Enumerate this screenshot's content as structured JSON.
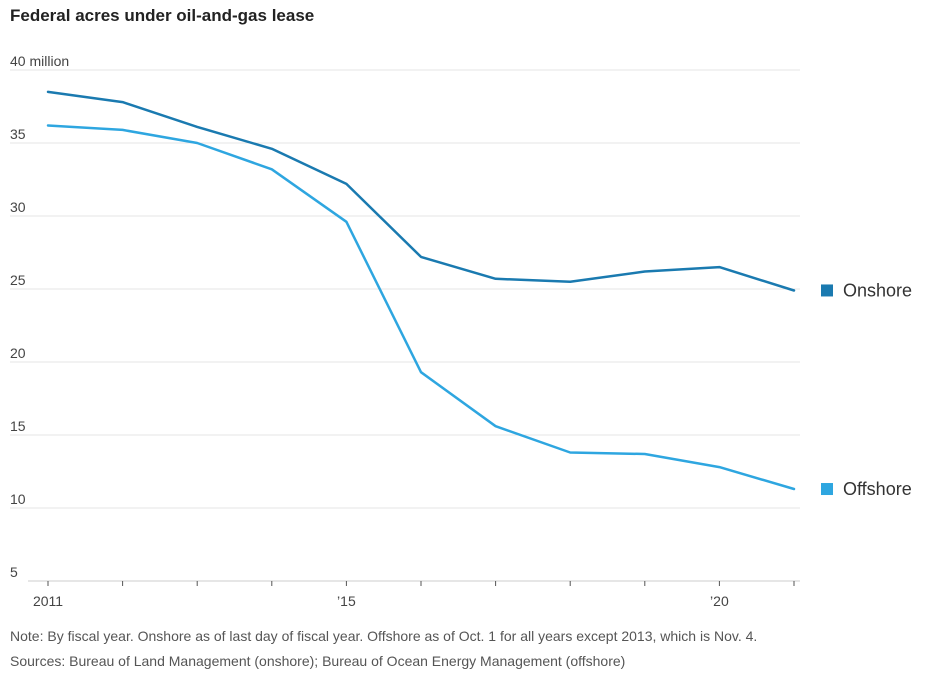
{
  "chart_data": {
    "type": "line",
    "title": "Federal acres under oil-and-gas lease",
    "x": [
      2011,
      2012,
      2013,
      2014,
      2015,
      2016,
      2017,
      2018,
      2019,
      2020,
      2021
    ],
    "x_tick_labels": [
      {
        "x": 2011,
        "label": "2011"
      },
      {
        "x": 2015,
        "label": "’15"
      },
      {
        "x": 2020,
        "label": "’20"
      }
    ],
    "y_ticks": [
      {
        "value": 40,
        "label": "40 million"
      },
      {
        "value": 35,
        "label": "35"
      },
      {
        "value": 30,
        "label": "30"
      },
      {
        "value": 25,
        "label": "25"
      },
      {
        "value": 20,
        "label": "20"
      },
      {
        "value": 15,
        "label": "15"
      },
      {
        "value": 10,
        "label": "10"
      },
      {
        "value": 5,
        "label": "5"
      }
    ],
    "ylim": [
      5,
      40
    ],
    "xlim": [
      2011,
      2021
    ],
    "grid": true,
    "legend_placement": "right, at line ends",
    "series": [
      {
        "name": "Onshore",
        "color": "#1a7ab0",
        "values": [
          38.5,
          37.8,
          36.1,
          34.6,
          32.2,
          27.2,
          25.7,
          25.5,
          26.2,
          26.5,
          24.9
        ]
      },
      {
        "name": "Offshore",
        "color": "#2ea6e0",
        "values": [
          36.2,
          35.9,
          35.0,
          33.2,
          29.6,
          19.3,
          15.6,
          13.8,
          13.7,
          12.8,
          11.3
        ]
      }
    ]
  },
  "notes": {
    "note": "Note: By fiscal year. Onshore as of last day of fiscal year. Offshore as of Oct. 1 for all years except 2013, which is Nov. 4.",
    "sources": "Sources: Bureau of Land Management (onshore); Bureau of Ocean Energy Management (offshore)"
  }
}
